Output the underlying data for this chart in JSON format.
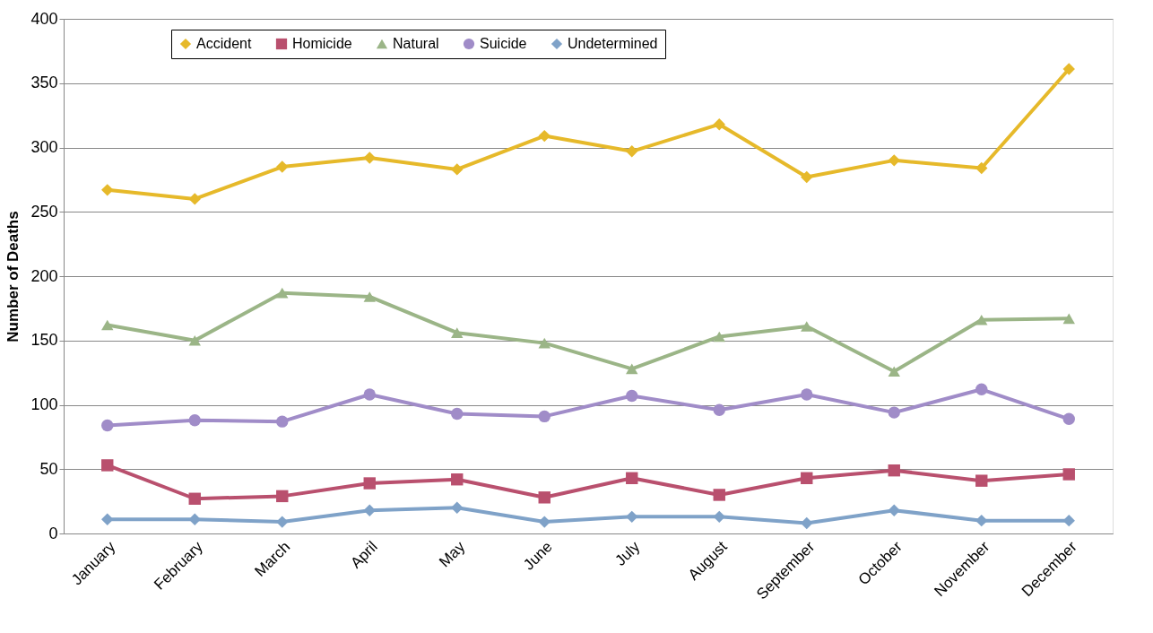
{
  "chart_data": {
    "type": "line",
    "ylabel": "Number of Deaths",
    "categories": [
      "January",
      "February",
      "March",
      "April",
      "May",
      "June",
      "July",
      "August",
      "September",
      "October",
      "November",
      "December"
    ],
    "series": [
      {
        "name": "Accident",
        "color": "#e6b92a",
        "marker": "diamond",
        "values": [
          267,
          260,
          285,
          292,
          283,
          309,
          297,
          318,
          277,
          290,
          284,
          361
        ]
      },
      {
        "name": "Homicide",
        "color": "#b9506e",
        "marker": "square",
        "values": [
          53,
          27,
          29,
          39,
          42,
          28,
          43,
          30,
          43,
          49,
          41,
          46
        ]
      },
      {
        "name": "Natural",
        "color": "#9bb587",
        "marker": "triangle",
        "values": [
          162,
          150,
          187,
          184,
          156,
          148,
          128,
          153,
          161,
          126,
          166,
          167
        ]
      },
      {
        "name": "Suicide",
        "color": "#a08cc8",
        "marker": "circle",
        "values": [
          84,
          88,
          87,
          108,
          93,
          91,
          107,
          96,
          108,
          94,
          112,
          89
        ]
      },
      {
        "name": "Undetermined",
        "color": "#7fa2c8",
        "marker": "diamond",
        "values": [
          11,
          11,
          9,
          18,
          20,
          9,
          13,
          13,
          8,
          18,
          10,
          10
        ]
      }
    ],
    "ylim": [
      0,
      400
    ],
    "yticks": [
      0,
      50,
      100,
      150,
      200,
      250,
      300,
      350,
      400
    ],
    "grid": "y",
    "legend": "top",
    "line_style": "solid"
  }
}
